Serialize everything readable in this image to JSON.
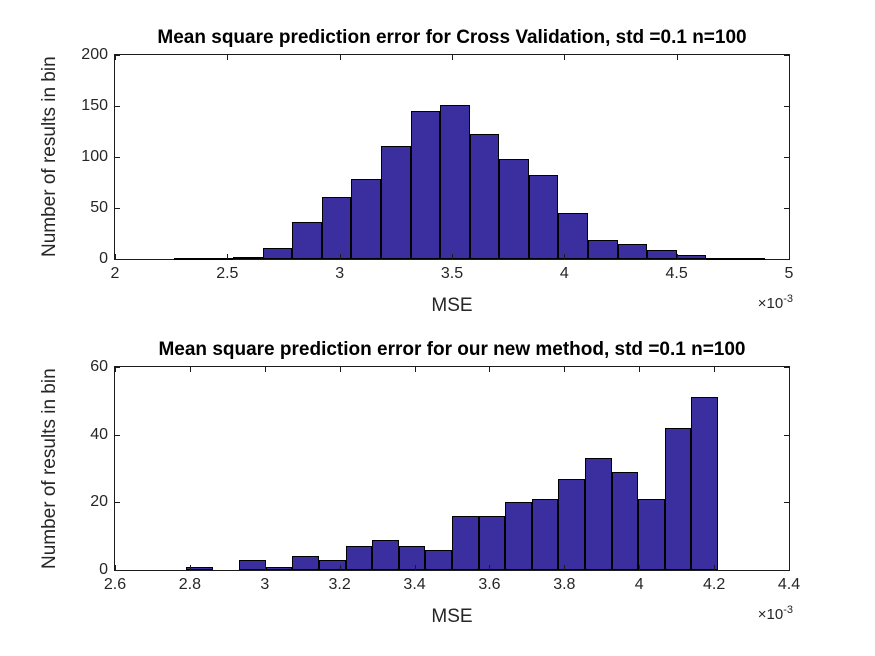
{
  "style": {
    "background": "#ffffff",
    "bar_fill": "#3B2FA0",
    "bar_edge": "#000000",
    "axis_color": "#1c1c1c",
    "tick_text_color": "#262626",
    "title_color": "#000000"
  },
  "chart_data": [
    {
      "type": "bar",
      "kind": "histogram",
      "title": "Mean square prediction error for Cross Validation, std =0.1 n=100",
      "xlabel": "MSE",
      "ylabel": "Number of results in bin",
      "x_mult": "×10",
      "x_mult_exp": "-3",
      "xlim": [
        2,
        5
      ],
      "ylim": [
        0,
        200
      ],
      "xtick_values": [
        2,
        2.5,
        3,
        3.5,
        4,
        4.5,
        5
      ],
      "xtick_labels": [
        "2",
        "2.5",
        "3",
        "3.5",
        "4",
        "4.5",
        "5"
      ],
      "ytick_values": [
        0,
        50,
        100,
        150,
        200
      ],
      "ytick_labels": [
        "0",
        "50",
        "100",
        "150",
        "200"
      ],
      "bin_start": 2.263,
      "bin_width": 0.1316,
      "counts": [
        1,
        1,
        2,
        11,
        36,
        61,
        78,
        111,
        145,
        151,
        123,
        98,
        82,
        45,
        19,
        15,
        9,
        4,
        1,
        1
      ],
      "legend": "none",
      "grid": false
    },
    {
      "type": "bar",
      "kind": "histogram",
      "title": "Mean square prediction error for our new method, std =0.1 n=100",
      "xlabel": "MSE",
      "ylabel": "Number of results in bin",
      "x_mult": "×10",
      "x_mult_exp": "-3",
      "xlim": [
        2.6,
        4.4
      ],
      "ylim": [
        0,
        60
      ],
      "xtick_values": [
        2.6,
        2.8,
        3,
        3.2,
        3.4,
        3.6,
        3.8,
        4,
        4.2,
        4.4
      ],
      "xtick_labels": [
        "2.6",
        "2.8",
        "3",
        "3.2",
        "3.4",
        "3.6",
        "3.8",
        "4",
        "4.2",
        "4.4"
      ],
      "ytick_values": [
        0,
        20,
        40,
        60
      ],
      "ytick_labels": [
        "0",
        "20",
        "40",
        "60"
      ],
      "bin_start": 2.79,
      "bin_width": 0.071,
      "counts": [
        1,
        0,
        3,
        1,
        4,
        3,
        7,
        9,
        7,
        6,
        16,
        16,
        20,
        21,
        27,
        33,
        29,
        21,
        42,
        51
      ],
      "legend": "none",
      "grid": false
    }
  ]
}
